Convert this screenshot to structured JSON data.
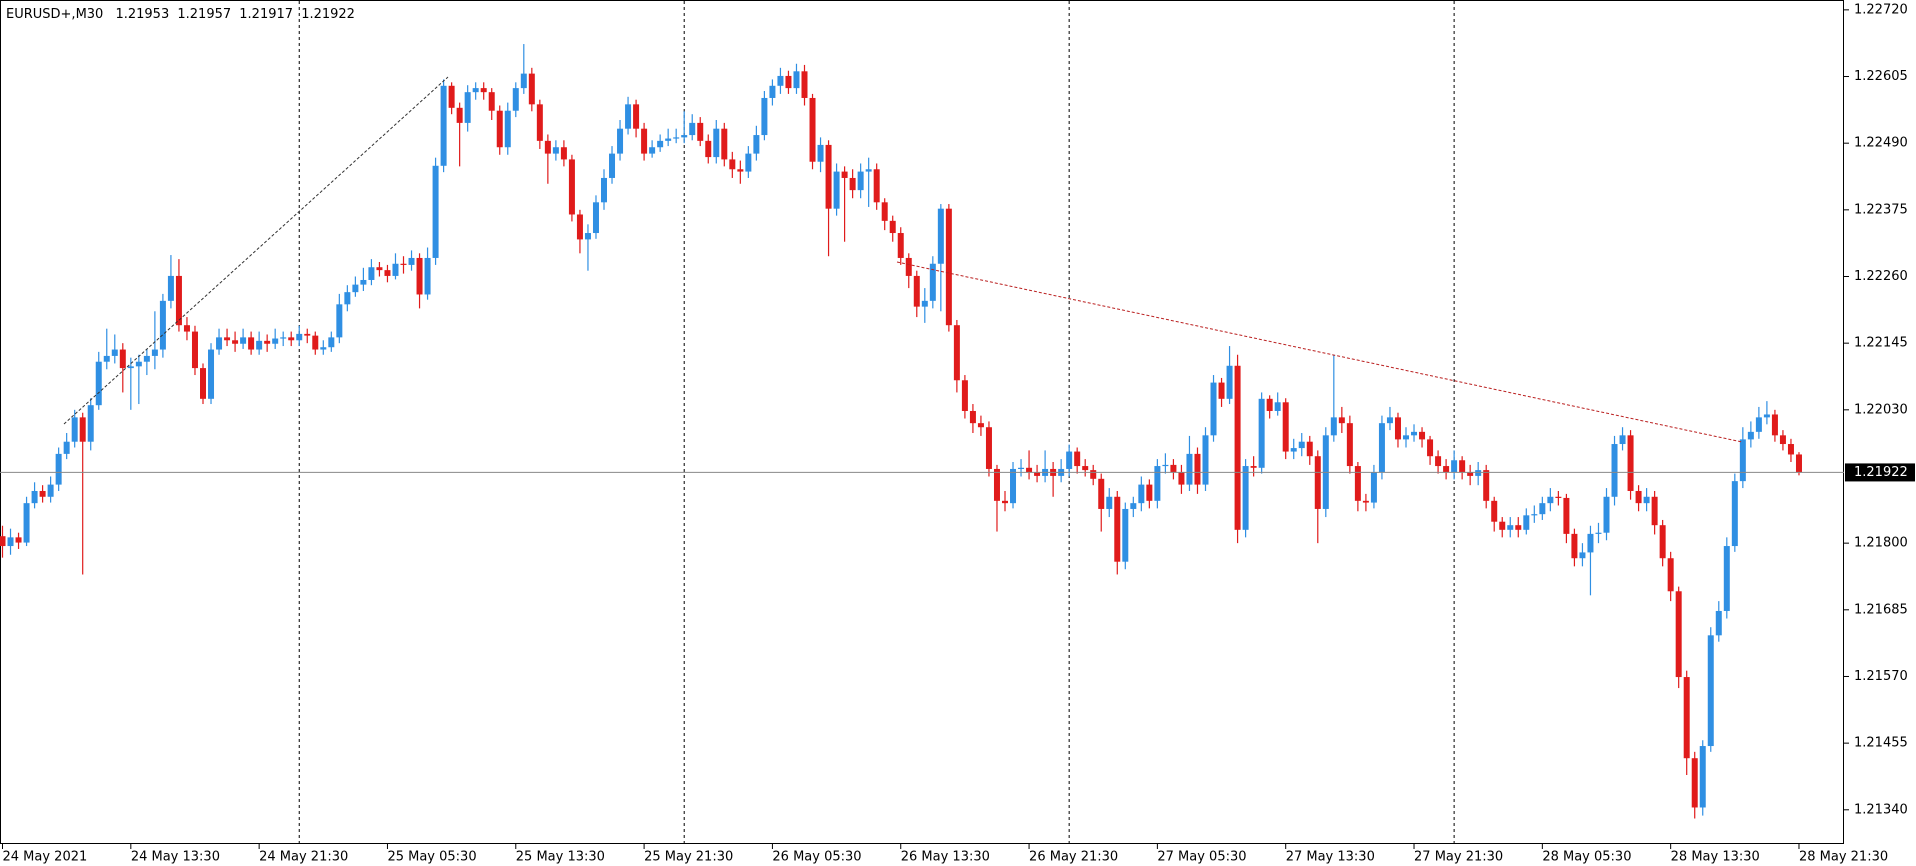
{
  "chart_data": {
    "type": "candlestick",
    "title": "EURUSD+,M30",
    "up_color": "#2f8fe3",
    "down_color": "#e01b1b",
    "grid": false,
    "period_separators": true,
    "ylim": [
      1.21281,
      1.22737
    ],
    "yticks": [
      {
        "value": 1.2272,
        "label": "1.22720"
      },
      1.22605,
      {
        "value": 1.2249,
        "label": "1.22490"
      },
      1.22375,
      {
        "value": 1.2226,
        "label": "1.22260"
      },
      1.22145,
      {
        "value": 1.2203,
        "label": "1.22030"
      },
      {
        "value": 1.218,
        "label": "1.21800"
      },
      1.21685,
      {
        "value": 1.2157,
        "label": "1.21570"
      },
      1.21455,
      {
        "value": 1.2134,
        "label": "1.21340"
      }
    ],
    "categories": [
      "24 May 2021",
      null,
      null,
      null,
      null,
      null,
      null,
      null,
      null,
      null,
      null,
      null,
      null,
      null,
      null,
      null,
      "24 May 13:30",
      null,
      null,
      null,
      null,
      null,
      null,
      null,
      null,
      null,
      null,
      null,
      null,
      null,
      null,
      null,
      "24 May 21:30",
      null,
      null,
      null,
      null,
      null,
      null,
      null,
      null,
      null,
      null,
      null,
      null,
      null,
      null,
      null,
      "25 May 05:30",
      null,
      null,
      null,
      null,
      null,
      null,
      null,
      null,
      null,
      null,
      null,
      null,
      null,
      null,
      null,
      "25 May 13:30",
      null,
      null,
      null,
      null,
      null,
      null,
      null,
      null,
      null,
      null,
      null,
      null,
      null,
      null,
      null,
      "25 May 21:30",
      null,
      null,
      null,
      null,
      null,
      null,
      null,
      null,
      null,
      null,
      null,
      null,
      null,
      null,
      null,
      "26 May 05:30",
      null,
      null,
      null,
      null,
      null,
      null,
      null,
      null,
      null,
      null,
      null,
      null,
      null,
      null,
      null,
      "26 May 13:30",
      null,
      null,
      null,
      null,
      null,
      null,
      null,
      null,
      null,
      null,
      null,
      null,
      null,
      null,
      null,
      "26 May 21:30",
      null,
      null,
      null,
      null,
      null,
      null,
      null,
      null,
      null,
      null,
      null,
      null,
      null,
      null,
      null,
      "27 May 05:30",
      null,
      null,
      null,
      null,
      null,
      null,
      null,
      null,
      null,
      null,
      null,
      null,
      null,
      null,
      null,
      "27 May 13:30",
      null,
      null,
      null,
      null,
      null,
      null,
      null,
      null,
      null,
      null,
      null,
      null,
      null,
      null,
      null,
      "27 May 21:30",
      null,
      null,
      null,
      null,
      null,
      null,
      null,
      null,
      null,
      null,
      null,
      null,
      null,
      null,
      null,
      "28 May 05:30",
      null,
      null,
      null,
      null,
      null,
      null,
      null,
      null,
      null,
      null,
      null,
      null,
      null,
      null,
      null,
      "28 May 13:30",
      null,
      null,
      null,
      null,
      null,
      null,
      null,
      null,
      null,
      null,
      null,
      null,
      null,
      null,
      null,
      "28 May 21:30"
    ],
    "open": [
      1.21812,
      1.21795,
      1.2181,
      1.21801,
      1.21869,
      1.2189,
      1.2188,
      1.21901,
      1.21954,
      1.21975,
      1.22017,
      1.21975,
      1.22038,
      1.22113,
      1.22123,
      1.22134,
      1.22102,
      1.22105,
      1.22113,
      1.22123,
      1.22134,
      1.22218,
      1.22261,
      1.22176,
      1.22165,
      1.22102,
      1.22049,
      1.22134,
      1.22155,
      1.2215,
      1.22144,
      1.22155,
      1.22134,
      1.22149,
      1.22144,
      1.22153,
      1.22155,
      1.2215,
      1.22161,
      1.22158,
      1.22134,
      1.22138,
      1.22155,
      1.22212,
      1.22233,
      1.22246,
      1.22254,
      1.22276,
      1.22271,
      1.22261,
      1.22282,
      1.2228,
      1.22292,
      1.22229,
      1.22292,
      1.22451,
      1.22589,
      1.22551,
      1.22525,
      1.22578,
      1.22585,
      1.22578,
      1.22546,
      1.22483,
      1.22546,
      1.22585,
      1.2261,
      1.22557,
      1.22494,
      1.22472,
      1.22483,
      1.22462,
      1.22367,
      1.22324,
      1.22335,
      1.22388,
      1.2243,
      1.22472,
      1.22515,
      1.22557,
      1.22515,
      1.22472,
      1.22483,
      1.22494,
      1.22498,
      1.225,
      1.22504,
      1.22525,
      1.22494,
      1.22466,
      1.22515,
      1.22462,
      1.22445,
      1.22441,
      1.22472,
      1.22504,
      1.22568,
      1.22589,
      1.22606,
      1.22585,
      1.22614,
      1.22568,
      1.22458,
      1.22487,
      1.22377,
      1.22441,
      1.2243,
      1.22409,
      1.22441,
      1.22445,
      1.22388,
      1.22356,
      1.22335,
      1.22292,
      1.22261,
      1.22208,
      1.22218,
      1.22282,
      1.22377,
      1.22176,
      1.22081,
      1.22028,
      1.22007,
      1.22,
      1.21928,
      1.21873,
      1.21869,
      1.21928,
      1.2193,
      1.21922,
      1.21916,
      1.21928,
      1.21916,
      1.21928,
      1.21958,
      1.21933,
      1.21926,
      1.21911,
      1.21859,
      1.2188,
      1.21768,
      1.21859,
      1.21869,
      1.21901,
      1.21873,
      1.21933,
      1.21935,
      1.21922,
      1.21901,
      1.21954,
      1.21901,
      1.21986,
      1.22077,
      1.22049,
      1.22106,
      1.21823,
      1.21933,
      1.2193,
      1.22049,
      1.22028,
      1.22043,
      1.21958,
      1.21964,
      1.21975,
      1.2195,
      1.21859,
      1.21986,
      1.22017,
      1.22007,
      1.21933,
      1.21873,
      1.2187,
      1.21922,
      1.22007,
      1.22017,
      1.21979,
      1.21986,
      1.21992,
      1.21979,
      1.2195,
      1.21933,
      1.21922,
      1.21943,
      1.21922,
      1.21916,
      1.21926,
      1.21873,
      1.21837,
      1.21823,
      1.21831,
      1.21823,
      1.21848,
      1.2185,
      1.21869,
      1.2188,
      1.21878,
      1.21816,
      1.21774,
      1.21784,
      1.21816,
      1.21818,
      1.2188,
      1.21971,
      1.21986,
      1.2189,
      1.21869,
      1.2188,
      1.21831,
      1.21774,
      1.21717,
      1.21569,
      1.21429,
      1.21344,
      1.2145,
      1.21641,
      1.21683,
      1.21795,
      1.21907,
      1.21979,
      1.21992,
      1.22017,
      1.22022,
      1.21986,
      1.21971,
      1.21953
    ],
    "high": [
      1.2183,
      1.21825,
      1.21818,
      1.2188,
      1.21905,
      1.219,
      1.21915,
      1.21965,
      1.2199,
      1.2203,
      1.22025,
      1.2205,
      1.2213,
      1.2217,
      1.2216,
      1.22145,
      1.2212,
      1.22125,
      1.22135,
      1.222,
      1.2223,
      1.22297,
      1.2229,
      1.2219,
      1.22175,
      1.2211,
      1.22145,
      1.2217,
      1.2217,
      1.22165,
      1.2217,
      1.22165,
      1.22165,
      1.2216,
      1.2217,
      1.22165,
      1.22165,
      1.22175,
      1.2217,
      1.22165,
      1.2215,
      1.22165,
      1.2223,
      1.22245,
      1.2226,
      1.22275,
      1.2229,
      1.22285,
      1.2228,
      1.223,
      1.22295,
      1.22305,
      1.223,
      1.2231,
      1.22465,
      1.226,
      1.22595,
      1.2256,
      1.2259,
      1.22595,
      1.22595,
      1.22585,
      1.22555,
      1.2256,
      1.22595,
      1.22661,
      1.2262,
      1.22565,
      1.22505,
      1.22495,
      1.22495,
      1.2247,
      1.22375,
      1.2235,
      1.224,
      1.22445,
      1.22485,
      1.2253,
      1.2257,
      1.22565,
      1.22525,
      1.22495,
      1.22505,
      1.22515,
      1.22515,
      1.22545,
      1.2254,
      1.22535,
      1.22505,
      1.2253,
      1.22525,
      1.22475,
      1.2246,
      1.22485,
      1.2252,
      1.2258,
      1.226,
      1.2262,
      1.22615,
      1.22627,
      1.22625,
      1.22575,
      1.225,
      1.22495,
      1.22455,
      1.2245,
      1.22445,
      1.22455,
      1.22465,
      1.22455,
      1.22395,
      1.22365,
      1.22345,
      1.223,
      1.2227,
      1.2224,
      1.22295,
      1.22385,
      1.22385,
      1.22185,
      1.2209,
      1.2204,
      1.2202,
      1.2201,
      1.21935,
      1.2189,
      1.2194,
      1.21945,
      1.2196,
      1.21935,
      1.2196,
      1.2194,
      1.21945,
      1.2197,
      1.21965,
      1.21945,
      1.21935,
      1.2192,
      1.21895,
      1.2189,
      1.2187,
      1.2188,
      1.21915,
      1.2191,
      1.21945,
      1.21955,
      1.21945,
      1.21935,
      1.21985,
      1.21965,
      1.22,
      1.2209,
      1.22085,
      1.2214,
      1.22125,
      1.21945,
      1.2195,
      1.2206,
      1.22055,
      1.2206,
      1.2205,
      1.2198,
      1.2199,
      1.21985,
      1.2196,
      1.22,
      1.22125,
      1.22035,
      1.2202,
      1.2194,
      1.21885,
      1.21935,
      1.2202,
      1.22035,
      1.22025,
      1.22,
      1.22005,
      1.22,
      1.21985,
      1.2196,
      1.21945,
      1.2196,
      1.2195,
      1.21935,
      1.2194,
      1.21935,
      1.2188,
      1.21845,
      1.21845,
      1.21845,
      1.2186,
      1.21865,
      1.2188,
      1.21895,
      1.2189,
      1.21885,
      1.21825,
      1.218,
      1.2183,
      1.21835,
      1.21895,
      1.21985,
      1.22,
      1.21995,
      1.219,
      1.21895,
      1.2189,
      1.2184,
      1.21785,
      1.21725,
      1.2158,
      1.2144,
      1.2146,
      1.21655,
      1.217,
      1.2181,
      1.2192,
      1.22,
      1.2201,
      1.22035,
      1.22045,
      1.2203,
      1.21995,
      1.2198,
      1.21957
    ],
    "low": [
      1.21775,
      1.2178,
      1.2179,
      1.21795,
      1.2186,
      1.2187,
      1.2187,
      1.2189,
      1.21945,
      1.21965,
      1.21746,
      1.2196,
      1.2203,
      1.221,
      1.2211,
      1.2206,
      1.2203,
      1.2204,
      1.2209,
      1.221,
      1.2212,
      1.22205,
      1.22165,
      1.2215,
      1.2209,
      1.2204,
      1.2204,
      1.22125,
      1.2214,
      1.2213,
      1.22135,
      1.22125,
      1.22125,
      1.2213,
      1.22135,
      1.2214,
      1.2214,
      1.2214,
      1.22145,
      1.22125,
      1.22125,
      1.2213,
      1.22145,
      1.222,
      1.22225,
      1.22235,
      1.22245,
      1.2226,
      1.2225,
      1.22255,
      1.22265,
      1.2227,
      1.22205,
      1.2222,
      1.2228,
      1.2244,
      1.2254,
      1.2245,
      1.2251,
      1.22565,
      1.22565,
      1.2253,
      1.2247,
      1.2247,
      1.22535,
      1.22575,
      1.22545,
      1.2248,
      1.2242,
      1.2246,
      1.2245,
      1.22355,
      1.223,
      1.2227,
      1.22325,
      1.22375,
      1.2242,
      1.2246,
      1.22505,
      1.225,
      1.2246,
      1.22465,
      1.22475,
      1.22485,
      1.2249,
      1.2249,
      1.22495,
      1.22485,
      1.22455,
      1.22455,
      1.2245,
      1.2243,
      1.2242,
      1.2243,
      1.2246,
      1.22495,
      1.22555,
      1.22575,
      1.22575,
      1.22575,
      1.22555,
      1.22445,
      1.2244,
      1.22295,
      1.22365,
      1.2232,
      1.22395,
      1.22395,
      1.2238,
      1.22375,
      1.2234,
      1.2232,
      1.2228,
      1.2224,
      1.2219,
      1.2218,
      1.22205,
      1.222,
      1.22165,
      1.2206,
      1.22015,
      1.2199,
      1.21985,
      1.21915,
      1.2182,
      1.21855,
      1.2186,
      1.21915,
      1.2191,
      1.21905,
      1.21905,
      1.2188,
      1.21905,
      1.21915,
      1.2192,
      1.21915,
      1.219,
      1.2182,
      1.21845,
      1.21746,
      1.21755,
      1.21845,
      1.21855,
      1.2186,
      1.2186,
      1.2192,
      1.2191,
      1.21885,
      1.2189,
      1.21885,
      1.2189,
      1.21975,
      1.22035,
      1.2204,
      1.218,
      1.2181,
      1.21915,
      1.2192,
      1.22015,
      1.2202,
      1.21945,
      1.21945,
      1.2195,
      1.21935,
      1.218,
      1.21845,
      1.21975,
      1.2199,
      1.2192,
      1.21855,
      1.21855,
      1.2186,
      1.2191,
      1.21995,
      1.21965,
      1.21965,
      1.21975,
      1.21965,
      1.21935,
      1.2192,
      1.2191,
      1.2191,
      1.2191,
      1.219,
      1.219,
      1.2186,
      1.2182,
      1.2181,
      1.2181,
      1.2181,
      1.21815,
      1.21835,
      1.2184,
      1.21855,
      1.21865,
      1.218,
      1.2176,
      1.2176,
      1.2171,
      1.218,
      1.21805,
      1.21865,
      1.2196,
      1.21875,
      1.21855,
      1.21855,
      1.21815,
      1.2176,
      1.217,
      1.2155,
      1.214,
      1.21325,
      1.2133,
      1.2144,
      1.2163,
      1.2167,
      1.21785,
      1.21895,
      1.21965,
      1.2198,
      1.22005,
      1.21975,
      1.2196,
      1.2194,
      1.21917
    ],
    "close": [
      1.21795,
      1.2181,
      1.21801,
      1.21869,
      1.2189,
      1.2188,
      1.21901,
      1.21954,
      1.21975,
      1.22017,
      1.21975,
      1.22038,
      1.22113,
      1.22123,
      1.22134,
      1.22102,
      1.22105,
      1.22113,
      1.22123,
      1.22134,
      1.22218,
      1.22261,
      1.22176,
      1.22165,
      1.22102,
      1.22049,
      1.22134,
      1.22155,
      1.2215,
      1.22144,
      1.22155,
      1.22134,
      1.22149,
      1.22144,
      1.22153,
      1.22155,
      1.2215,
      1.22161,
      1.22158,
      1.22134,
      1.22138,
      1.22155,
      1.22212,
      1.22233,
      1.22246,
      1.22254,
      1.22276,
      1.22271,
      1.22261,
      1.22282,
      1.2228,
      1.22292,
      1.22229,
      1.22292,
      1.22451,
      1.22589,
      1.22551,
      1.22525,
      1.22578,
      1.22585,
      1.22578,
      1.22546,
      1.22483,
      1.22546,
      1.22585,
      1.2261,
      1.22557,
      1.22494,
      1.22472,
      1.22483,
      1.22462,
      1.22367,
      1.22324,
      1.22335,
      1.22388,
      1.2243,
      1.22472,
      1.22515,
      1.22557,
      1.22515,
      1.22472,
      1.22483,
      1.22494,
      1.22498,
      1.225,
      1.22504,
      1.22525,
      1.22494,
      1.22466,
      1.22515,
      1.22462,
      1.22445,
      1.22441,
      1.22472,
      1.22504,
      1.22568,
      1.22589,
      1.22606,
      1.22585,
      1.22614,
      1.22568,
      1.22458,
      1.22487,
      1.22377,
      1.22441,
      1.2243,
      1.22409,
      1.22441,
      1.22445,
      1.22388,
      1.22356,
      1.22335,
      1.22292,
      1.22261,
      1.22208,
      1.22218,
      1.22282,
      1.22377,
      1.22176,
      1.22081,
      1.22028,
      1.22007,
      1.22,
      1.21928,
      1.21873,
      1.21869,
      1.21928,
      1.2193,
      1.21922,
      1.21916,
      1.21928,
      1.21916,
      1.21928,
      1.21958,
      1.21933,
      1.21926,
      1.21911,
      1.21859,
      1.2188,
      1.21768,
      1.21859,
      1.21869,
      1.21901,
      1.21873,
      1.21933,
      1.21935,
      1.21922,
      1.21901,
      1.21954,
      1.21901,
      1.21986,
      1.22077,
      1.22049,
      1.22106,
      1.21823,
      1.21933,
      1.2193,
      1.22049,
      1.22028,
      1.22043,
      1.21958,
      1.21964,
      1.21975,
      1.2195,
      1.21859,
      1.21986,
      1.22017,
      1.22007,
      1.21933,
      1.21873,
      1.2187,
      1.21922,
      1.22007,
      1.22017,
      1.21979,
      1.21986,
      1.21992,
      1.21979,
      1.2195,
      1.21933,
      1.21922,
      1.21943,
      1.21922,
      1.21916,
      1.21926,
      1.21873,
      1.21837,
      1.21823,
      1.21831,
      1.21823,
      1.21848,
      1.2185,
      1.21869,
      1.2188,
      1.21878,
      1.21816,
      1.21774,
      1.21784,
      1.21816,
      1.21818,
      1.2188,
      1.21971,
      1.21986,
      1.2189,
      1.21869,
      1.2188,
      1.21831,
      1.21774,
      1.21717,
      1.21569,
      1.21429,
      1.21344,
      1.2145,
      1.21641,
      1.21683,
      1.21795,
      1.21907,
      1.21979,
      1.21992,
      1.22017,
      1.22022,
      1.21986,
      1.21971,
      1.21953,
      1.21922
    ]
  }
}
